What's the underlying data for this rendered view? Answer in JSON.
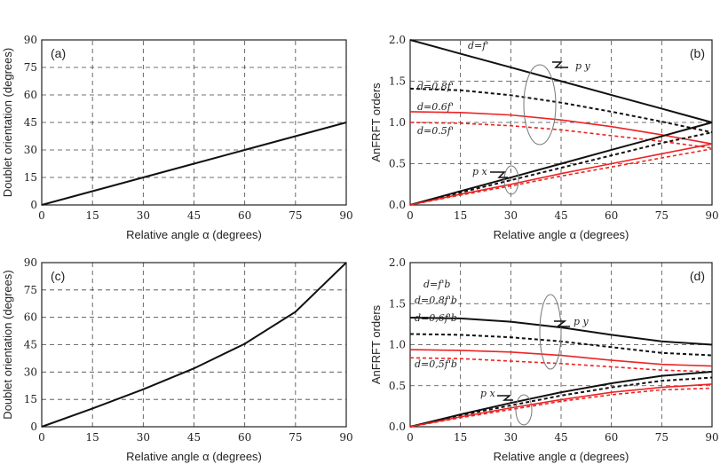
{
  "chart_data": [
    {
      "type": "line",
      "panel_label": "(a)",
      "xlabel": "Relative angle α (degrees)",
      "ylabel": "Doublet orientation (degrees)",
      "xlim": [
        0,
        90
      ],
      "ylim": [
        0,
        90
      ],
      "xticks": [
        0,
        15,
        30,
        45,
        60,
        75,
        90
      ],
      "yticks": [
        0,
        15,
        30,
        45,
        60,
        75,
        90
      ],
      "grid": true,
      "x": [
        0,
        15,
        30,
        45,
        60,
        75,
        90
      ],
      "series": [
        {
          "values": [
            0,
            7.5,
            15,
            22.5,
            30,
            37.5,
            45
          ],
          "color": "#111111",
          "dash": false
        }
      ],
      "annotations": []
    },
    {
      "type": "line",
      "panel_label": "(b)",
      "xlabel": "Relative angle α (degrees)",
      "ylabel": "AnFRFT orders",
      "xlim": [
        0,
        90
      ],
      "ylim": [
        0,
        2
      ],
      "xticks": [
        0,
        15,
        30,
        45,
        60,
        75,
        90
      ],
      "yticks": [
        0.0,
        0.5,
        1.0,
        1.5,
        2.0
      ],
      "grid": true,
      "x": [
        0,
        15,
        30,
        45,
        60,
        75,
        90
      ],
      "series": [
        {
          "values": [
            2,
            1.833,
            1.667,
            1.5,
            1.333,
            1.167,
            1.0
          ],
          "color": "#111111",
          "dash": false
        },
        {
          "values": [
            1.41,
            1.39,
            1.33,
            1.24,
            1.13,
            1.01,
            0.88
          ],
          "color": "#111111",
          "dash": true
        },
        {
          "values": [
            1.13,
            1.12,
            1.09,
            1.03,
            0.95,
            0.85,
            0.74
          ],
          "color": "#ee2222",
          "dash": false
        },
        {
          "values": [
            1.0,
            0.99,
            0.96,
            0.91,
            0.84,
            0.77,
            0.69
          ],
          "color": "#ee2222",
          "dash": true
        },
        {
          "values": [
            0,
            0.167,
            0.333,
            0.5,
            0.667,
            0.833,
            1.0
          ],
          "color": "#111111",
          "dash": false
        },
        {
          "values": [
            0,
            0.15,
            0.3,
            0.45,
            0.6,
            0.75,
            0.88
          ],
          "color": "#111111",
          "dash": true
        },
        {
          "values": [
            0,
            0.13,
            0.25,
            0.38,
            0.5,
            0.62,
            0.74
          ],
          "color": "#ee2222",
          "dash": false
        },
        {
          "values": [
            0,
            0.12,
            0.23,
            0.35,
            0.46,
            0.57,
            0.68
          ],
          "color": "#ee2222",
          "dash": true
        }
      ],
      "annotations": [
        "d=f'",
        "d=0.8f'",
        "d=0.6f'",
        "d=0.5f'",
        "p y",
        "p x"
      ]
    },
    {
      "type": "line",
      "panel_label": "(c)",
      "xlabel": "Relative angle α (degrees)",
      "ylabel": "Doublet orientation (degrees)",
      "xlim": [
        0,
        90
      ],
      "ylim": [
        0,
        90
      ],
      "xticks": [
        0,
        15,
        30,
        45,
        60,
        75,
        90
      ],
      "yticks": [
        0,
        15,
        30,
        45,
        60,
        75,
        90
      ],
      "grid": true,
      "x": [
        0,
        15,
        30,
        45,
        60,
        75,
        90
      ],
      "series": [
        {
          "values": [
            0,
            10,
            20.5,
            32,
            45.5,
            63,
            90
          ],
          "color": "#111111",
          "dash": false
        }
      ],
      "annotations": []
    },
    {
      "type": "line",
      "panel_label": "(d)",
      "xlabel": "Relative angle α (degrees)",
      "ylabel": "AnFRFT orders",
      "xlim": [
        0,
        90
      ],
      "ylim": [
        0,
        2
      ],
      "xticks": [
        0,
        15,
        30,
        45,
        60,
        75,
        90
      ],
      "yticks": [
        0.0,
        0.5,
        1.0,
        1.5,
        2.0
      ],
      "grid": true,
      "x": [
        0,
        15,
        30,
        45,
        60,
        75,
        90
      ],
      "series": [
        {
          "values": [
            1.33,
            1.32,
            1.28,
            1.21,
            1.12,
            1.04,
            1.0
          ],
          "color": "#111111",
          "dash": false
        },
        {
          "values": [
            1.13,
            1.12,
            1.09,
            1.04,
            0.97,
            0.9,
            0.87
          ],
          "color": "#111111",
          "dash": true
        },
        {
          "values": [
            0.94,
            0.93,
            0.91,
            0.87,
            0.81,
            0.76,
            0.74
          ],
          "color": "#ee2222",
          "dash": false
        },
        {
          "values": [
            0.84,
            0.83,
            0.8,
            0.77,
            0.73,
            0.69,
            0.67
          ],
          "color": "#ee2222",
          "dash": true
        },
        {
          "values": [
            0,
            0.15,
            0.29,
            0.42,
            0.53,
            0.62,
            0.67
          ],
          "color": "#111111",
          "dash": false
        },
        {
          "values": [
            0,
            0.14,
            0.26,
            0.38,
            0.48,
            0.56,
            0.6
          ],
          "color": "#111111",
          "dash": true
        },
        {
          "values": [
            0,
            0.12,
            0.23,
            0.33,
            0.42,
            0.48,
            0.52
          ],
          "color": "#ee2222",
          "dash": false
        },
        {
          "values": [
            0,
            0.11,
            0.21,
            0.31,
            0.39,
            0.45,
            0.47
          ],
          "color": "#ee2222",
          "dash": true
        }
      ],
      "annotations": [
        "d=f'b",
        "d=0.8f'b",
        "d=0,6f'b",
        "d=0,5f'b",
        "p y",
        "p x"
      ]
    }
  ]
}
